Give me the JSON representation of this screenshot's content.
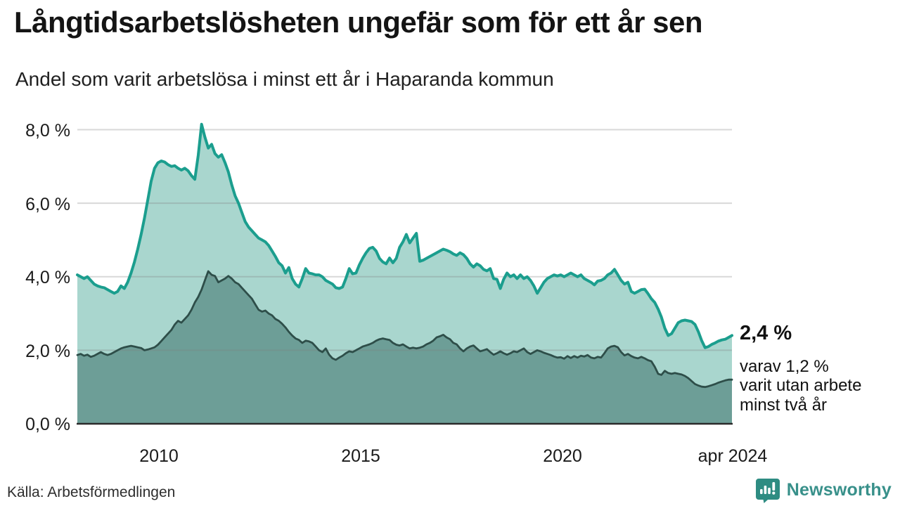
{
  "header": {
    "title": "Långtidsarbetslösheten ungefär som för ett år sen",
    "subtitle": "Andel som varit arbetslösa i minst ett år i Haparanda kommun"
  },
  "chart_data": {
    "type": "area",
    "title": "Långtidsarbetslösheten ungefär som för ett år sen",
    "subtitle": "Andel som varit arbetslösa i minst ett år i Haparanda kommun",
    "x_start": "2008-01",
    "x_end": "2024-04",
    "x_frequency": "monthly",
    "x_tick_labels": [
      "2010",
      "2015",
      "2020",
      "apr 2024"
    ],
    "y_tick_labels": [
      "0,0 %",
      "2,0 %",
      "4,0 %",
      "6,0 %",
      "8,0 %"
    ],
    "y_ticks": [
      0,
      2,
      4,
      6,
      8
    ],
    "ylim": [
      0,
      8.6
    ],
    "grid": "horizontal",
    "legend_position": "none",
    "colors": {
      "series1_line": "#1b9e8e",
      "series1_fill": "#a9d6ce",
      "series2_line": "#2e4e49",
      "series2_fill": "#6d9e97",
      "gridline": "#d9d9d9",
      "baseline": "#2b2b2b"
    },
    "series": [
      {
        "name": "Andel som varit arbetslösa i minst ett år",
        "values": [
          4.05,
          4.0,
          3.95,
          4.0,
          3.9,
          3.8,
          3.75,
          3.72,
          3.7,
          3.65,
          3.6,
          3.55,
          3.6,
          3.75,
          3.68,
          3.85,
          4.1,
          4.4,
          4.75,
          5.15,
          5.6,
          6.1,
          6.6,
          6.95,
          7.1,
          7.15,
          7.12,
          7.05,
          7.0,
          7.02,
          6.95,
          6.9,
          6.95,
          6.88,
          6.75,
          6.65,
          7.3,
          8.15,
          7.8,
          7.5,
          7.6,
          7.35,
          7.25,
          7.32,
          7.1,
          6.85,
          6.5,
          6.2,
          6.0,
          5.75,
          5.5,
          5.35,
          5.25,
          5.15,
          5.05,
          5.0,
          4.95,
          4.85,
          4.7,
          4.55,
          4.38,
          4.3,
          4.1,
          4.25,
          3.95,
          3.8,
          3.72,
          3.95,
          4.22,
          4.1,
          4.08,
          4.05,
          4.05,
          4.0,
          3.9,
          3.85,
          3.8,
          3.7,
          3.68,
          3.72,
          3.95,
          4.22,
          4.08,
          4.1,
          4.32,
          4.5,
          4.65,
          4.77,
          4.8,
          4.7,
          4.5,
          4.4,
          4.35,
          4.51,
          4.38,
          4.5,
          4.8,
          4.95,
          5.15,
          4.92,
          5.05,
          5.18,
          4.42,
          4.45,
          4.5,
          4.55,
          4.6,
          4.65,
          4.7,
          4.75,
          4.72,
          4.68,
          4.62,
          4.58,
          4.65,
          4.6,
          4.5,
          4.35,
          4.26,
          4.35,
          4.3,
          4.2,
          4.16,
          4.22,
          3.95,
          3.93,
          3.68,
          3.93,
          4.1,
          4.0,
          4.05,
          3.95,
          4.05,
          3.95,
          4.0,
          3.9,
          3.75,
          3.55,
          3.7,
          3.85,
          3.95,
          4.0,
          4.05,
          4.02,
          4.05,
          4.0,
          4.05,
          4.1,
          4.05,
          4.0,
          4.05,
          3.95,
          3.9,
          3.85,
          3.78,
          3.88,
          3.9,
          3.95,
          4.05,
          4.1,
          4.2,
          4.05,
          3.9,
          3.8,
          3.85,
          3.6,
          3.55,
          3.6,
          3.65,
          3.66,
          3.54,
          3.4,
          3.3,
          3.12,
          2.9,
          2.6,
          2.4,
          2.45,
          2.6,
          2.75,
          2.8,
          2.82,
          2.8,
          2.78,
          2.7,
          2.5,
          2.26,
          2.07,
          2.1,
          2.16,
          2.2,
          2.25,
          2.28,
          2.3,
          2.35,
          2.4
        ]
      },
      {
        "name": "varav utan arbete minst två år",
        "values": [
          1.87,
          1.9,
          1.85,
          1.88,
          1.82,
          1.85,
          1.9,
          1.95,
          1.9,
          1.87,
          1.9,
          1.95,
          2.0,
          2.05,
          2.08,
          2.1,
          2.12,
          2.1,
          2.08,
          2.06,
          2.0,
          2.02,
          2.05,
          2.08,
          2.15,
          2.25,
          2.35,
          2.45,
          2.55,
          2.7,
          2.8,
          2.75,
          2.85,
          2.95,
          3.1,
          3.3,
          3.45,
          3.65,
          3.9,
          4.15,
          4.05,
          4.02,
          3.85,
          3.9,
          3.95,
          4.02,
          3.95,
          3.85,
          3.8,
          3.7,
          3.6,
          3.5,
          3.4,
          3.25,
          3.1,
          3.05,
          3.08,
          3.0,
          2.95,
          2.85,
          2.8,
          2.72,
          2.62,
          2.5,
          2.4,
          2.32,
          2.28,
          2.2,
          2.26,
          2.24,
          2.2,
          2.1,
          2.0,
          1.95,
          2.05,
          1.88,
          1.78,
          1.74,
          1.8,
          1.85,
          1.92,
          1.97,
          1.95,
          2.0,
          2.05,
          2.1,
          2.13,
          2.16,
          2.2,
          2.26,
          2.3,
          2.32,
          2.3,
          2.28,
          2.2,
          2.15,
          2.13,
          2.16,
          2.1,
          2.05,
          2.07,
          2.05,
          2.07,
          2.1,
          2.16,
          2.2,
          2.26,
          2.35,
          2.38,
          2.42,
          2.35,
          2.3,
          2.2,
          2.16,
          2.05,
          1.97,
          2.05,
          2.1,
          2.13,
          2.05,
          1.97,
          2.0,
          2.03,
          1.95,
          1.88,
          1.92,
          1.97,
          1.92,
          1.88,
          1.92,
          1.97,
          1.95,
          2.0,
          2.05,
          1.95,
          1.9,
          1.95,
          2.0,
          1.97,
          1.93,
          1.9,
          1.87,
          1.83,
          1.8,
          1.81,
          1.77,
          1.84,
          1.79,
          1.84,
          1.8,
          1.85,
          1.83,
          1.87,
          1.8,
          1.78,
          1.82,
          1.8,
          1.92,
          2.05,
          2.1,
          2.12,
          2.08,
          1.95,
          1.86,
          1.9,
          1.84,
          1.8,
          1.78,
          1.82,
          1.78,
          1.73,
          1.7,
          1.55,
          1.36,
          1.33,
          1.44,
          1.38,
          1.36,
          1.38,
          1.36,
          1.34,
          1.3,
          1.24,
          1.16,
          1.08,
          1.04,
          1.01,
          1.0,
          1.02,
          1.05,
          1.08,
          1.12,
          1.15,
          1.18,
          1.2,
          1.2
        ]
      }
    ],
    "annotations": {
      "latest_value": "2,4 %",
      "secondary_line1": "varav 1,2 %",
      "secondary_line2": "varit utan arbete",
      "secondary_line3": "minst två år"
    }
  },
  "footer": {
    "source": "Källa: Arbetsförmedlingen",
    "brand": "Newsworthy"
  }
}
